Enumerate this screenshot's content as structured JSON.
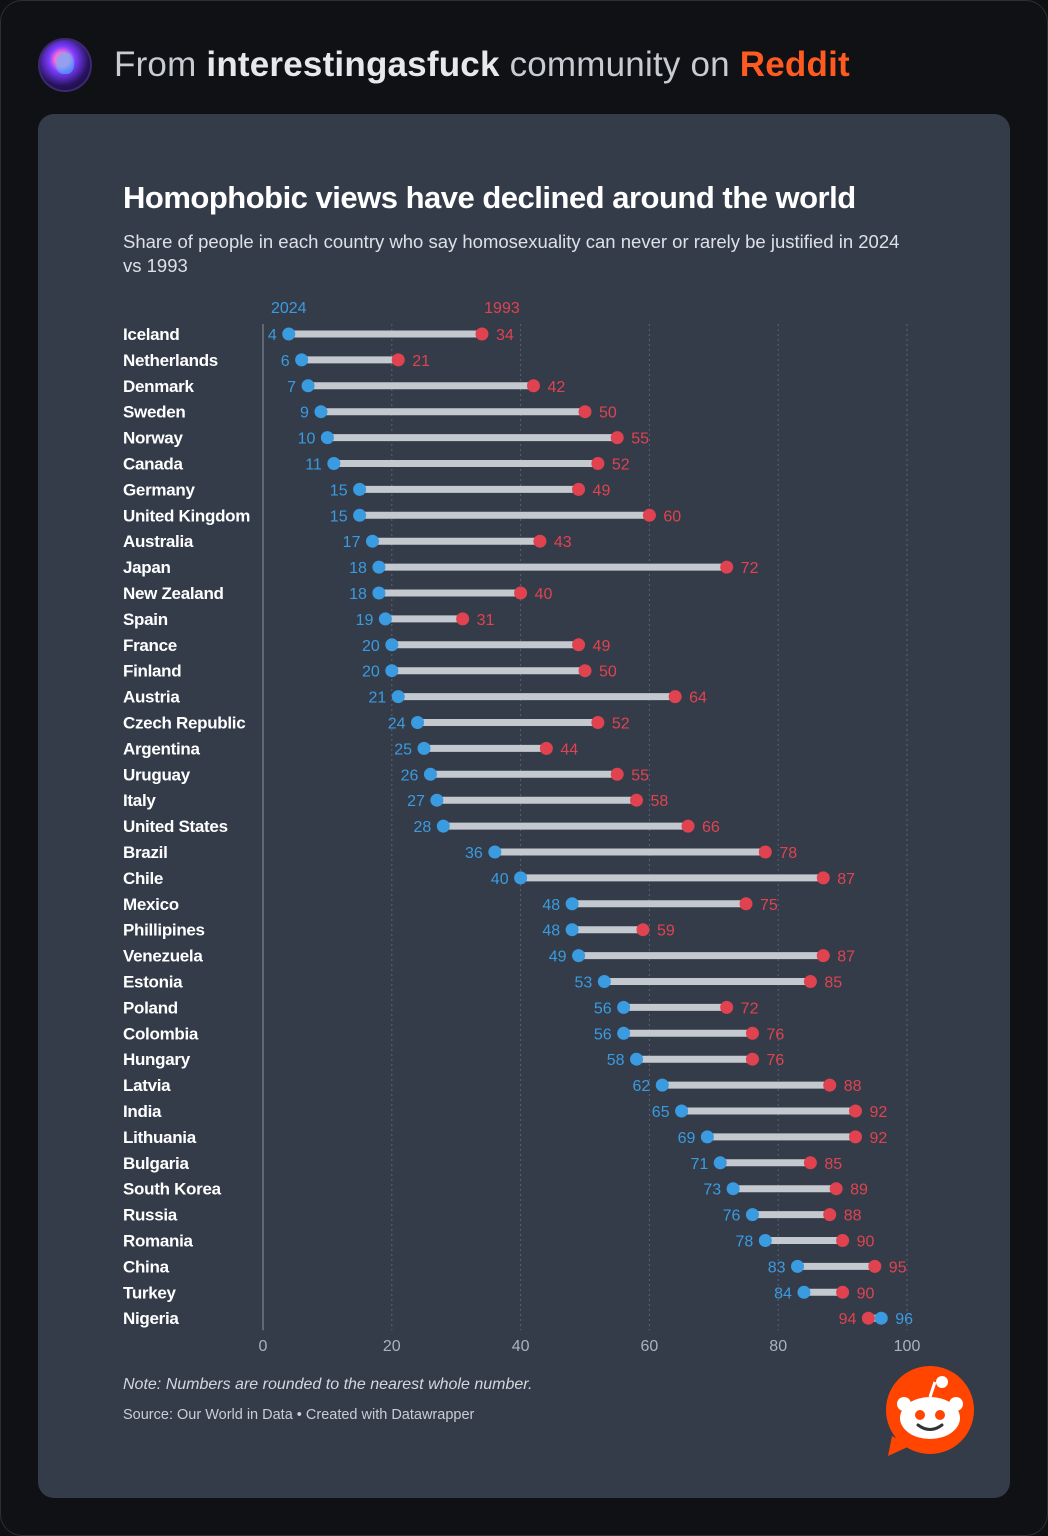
{
  "header": {
    "prefix": "From",
    "community": "interestingasfuck",
    "middle": "community on",
    "platform": "Reddit"
  },
  "chart_data": {
    "type": "dumbbell",
    "title": "Homophobic views have declined around the world",
    "subtitle": "Share of people in each country who say homosexuality can never or rarely be justified in 2024 vs 1993",
    "series": [
      {
        "name": "2024",
        "color": "#3a9be0"
      },
      {
        "name": "1993",
        "color": "#e0434f"
      }
    ],
    "xlim": [
      0,
      100
    ],
    "xticks": [
      0,
      20,
      40,
      60,
      80,
      100
    ],
    "grid": true,
    "rows": [
      {
        "country": "Iceland",
        "v2024": 4,
        "v1993": 34
      },
      {
        "country": "Netherlands",
        "v2024": 6,
        "v1993": 21
      },
      {
        "country": "Denmark",
        "v2024": 7,
        "v1993": 42
      },
      {
        "country": "Sweden",
        "v2024": 9,
        "v1993": 50
      },
      {
        "country": "Norway",
        "v2024": 10,
        "v1993": 55
      },
      {
        "country": "Canada",
        "v2024": 11,
        "v1993": 52
      },
      {
        "country": "Germany",
        "v2024": 15,
        "v1993": 49
      },
      {
        "country": "United Kingdom",
        "v2024": 15,
        "v1993": 60
      },
      {
        "country": "Australia",
        "v2024": 17,
        "v1993": 43
      },
      {
        "country": "Japan",
        "v2024": 18,
        "v1993": 72
      },
      {
        "country": "New Zealand",
        "v2024": 18,
        "v1993": 40
      },
      {
        "country": "Spain",
        "v2024": 19,
        "v1993": 31
      },
      {
        "country": "France",
        "v2024": 20,
        "v1993": 49
      },
      {
        "country": "Finland",
        "v2024": 20,
        "v1993": 50
      },
      {
        "country": "Austria",
        "v2024": 21,
        "v1993": 64
      },
      {
        "country": "Czech Republic",
        "v2024": 24,
        "v1993": 52
      },
      {
        "country": "Argentina",
        "v2024": 25,
        "v1993": 44
      },
      {
        "country": "Uruguay",
        "v2024": 26,
        "v1993": 55
      },
      {
        "country": "Italy",
        "v2024": 27,
        "v1993": 58
      },
      {
        "country": "United States",
        "v2024": 28,
        "v1993": 66
      },
      {
        "country": "Brazil",
        "v2024": 36,
        "v1993": 78
      },
      {
        "country": "Chile",
        "v2024": 40,
        "v1993": 87
      },
      {
        "country": "Mexico",
        "v2024": 48,
        "v1993": 75
      },
      {
        "country": "Phillipines",
        "v2024": 48,
        "v1993": 59
      },
      {
        "country": "Venezuela",
        "v2024": 49,
        "v1993": 87
      },
      {
        "country": "Estonia",
        "v2024": 53,
        "v1993": 85
      },
      {
        "country": "Poland",
        "v2024": 56,
        "v1993": 72
      },
      {
        "country": "Colombia",
        "v2024": 56,
        "v1993": 76
      },
      {
        "country": "Hungary",
        "v2024": 58,
        "v1993": 76
      },
      {
        "country": "Latvia",
        "v2024": 62,
        "v1993": 88
      },
      {
        "country": "India",
        "v2024": 65,
        "v1993": 92
      },
      {
        "country": "Lithuania",
        "v2024": 69,
        "v1993": 92
      },
      {
        "country": "Bulgaria",
        "v2024": 71,
        "v1993": 85
      },
      {
        "country": "South Korea",
        "v2024": 73,
        "v1993": 89
      },
      {
        "country": "Russia",
        "v2024": 76,
        "v1993": 88
      },
      {
        "country": "Romania",
        "v2024": 78,
        "v1993": 90
      },
      {
        "country": "China",
        "v2024": 83,
        "v1993": 95
      },
      {
        "country": "Turkey",
        "v2024": 84,
        "v1993": 90
      },
      {
        "country": "Nigeria",
        "v2024": 96,
        "v1993": 94
      }
    ]
  },
  "note": "Note: Numbers are rounded to the nearest whole number.",
  "source": "Source: Our World in Data • Created with Datawrapper",
  "icons": {
    "avatar": "community-avatar",
    "reddit": "reddit-snoo-icon"
  }
}
